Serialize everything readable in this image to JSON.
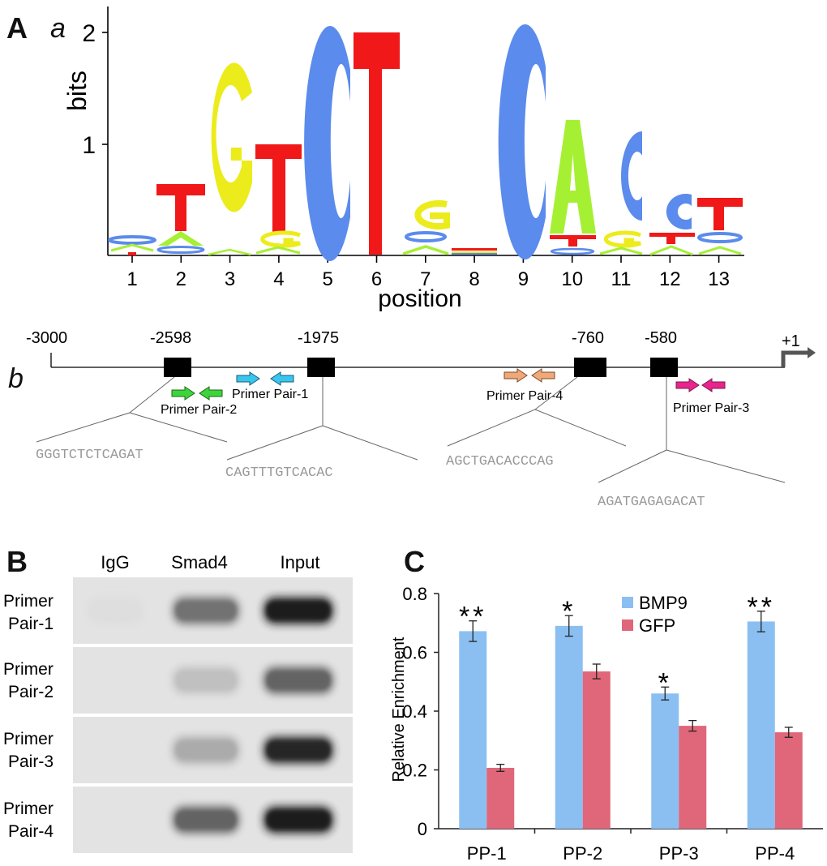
{
  "panels": {
    "A": "A",
    "a": "a",
    "b": "b",
    "B": "B",
    "C": "C"
  },
  "logo": {
    "ylabel": "bits",
    "xlabel": "position",
    "yticks": [
      "1",
      "2"
    ],
    "positions": [
      "1",
      "2",
      "3",
      "4",
      "5",
      "6",
      "7",
      "8",
      "9",
      "10",
      "11",
      "12",
      "13"
    ],
    "colors": {
      "A": "#a6f034",
      "C": "#5b8bec",
      "G": "#ecec1c",
      "T": "#f01818"
    }
  },
  "promoter": {
    "coords": [
      "-3000",
      "-2598",
      "-1975",
      "-760",
      "-580",
      "+1"
    ],
    "primers": [
      "Primer Pair-1",
      "Primer Pair-2",
      "Primer Pair-3",
      "Primer Pair-4"
    ],
    "sequences": [
      "GGGTCTCTCAGAT",
      "CAGTTTGTCACAC",
      "AGCTGACACCCAG",
      "AGATGAGAGACAT"
    ],
    "arrow_colors": {
      "pp1": "#39c6ec",
      "pp2": "#3fd43c",
      "pp3": "#e8248e",
      "pp4": "#f0a878"
    }
  },
  "gel": {
    "lanes": [
      "IgG",
      "Smad4",
      "Input"
    ],
    "rows": [
      {
        "line1": "Primer",
        "line2": "Pair-1"
      },
      {
        "line1": "Primer",
        "line2": "Pair-2"
      },
      {
        "line1": "Primer",
        "line2": "Pair-3"
      },
      {
        "line1": "Primer",
        "line2": "Pair-4"
      }
    ],
    "band_intensity": [
      [
        0.04,
        0.55,
        0.95
      ],
      [
        0.0,
        0.18,
        0.62
      ],
      [
        0.0,
        0.28,
        0.92
      ],
      [
        0.0,
        0.62,
        0.95
      ]
    ]
  },
  "chart_data": {
    "type": "bar",
    "title": "",
    "xlabel": "",
    "ylabel": "Relative Enrichment",
    "categories": [
      "PP-1",
      "PP-2",
      "PP-3",
      "PP-4"
    ],
    "ylim": [
      0,
      0.8
    ],
    "yticks": [
      "0",
      "0.2",
      "0.4",
      "0.6",
      "0.8"
    ],
    "series": [
      {
        "name": "BMP9",
        "color": "#8bbff2",
        "values": [
          0.672,
          0.69,
          0.46,
          0.705
        ],
        "errors": [
          0.035,
          0.035,
          0.022,
          0.035
        ]
      },
      {
        "name": "GFP",
        "color": "#e0667a",
        "values": [
          0.207,
          0.535,
          0.35,
          0.328
        ],
        "errors": [
          0.012,
          0.025,
          0.018,
          0.017
        ]
      }
    ],
    "significance": [
      "**",
      "*",
      "*",
      "**"
    ],
    "legend_position": "top-right"
  }
}
